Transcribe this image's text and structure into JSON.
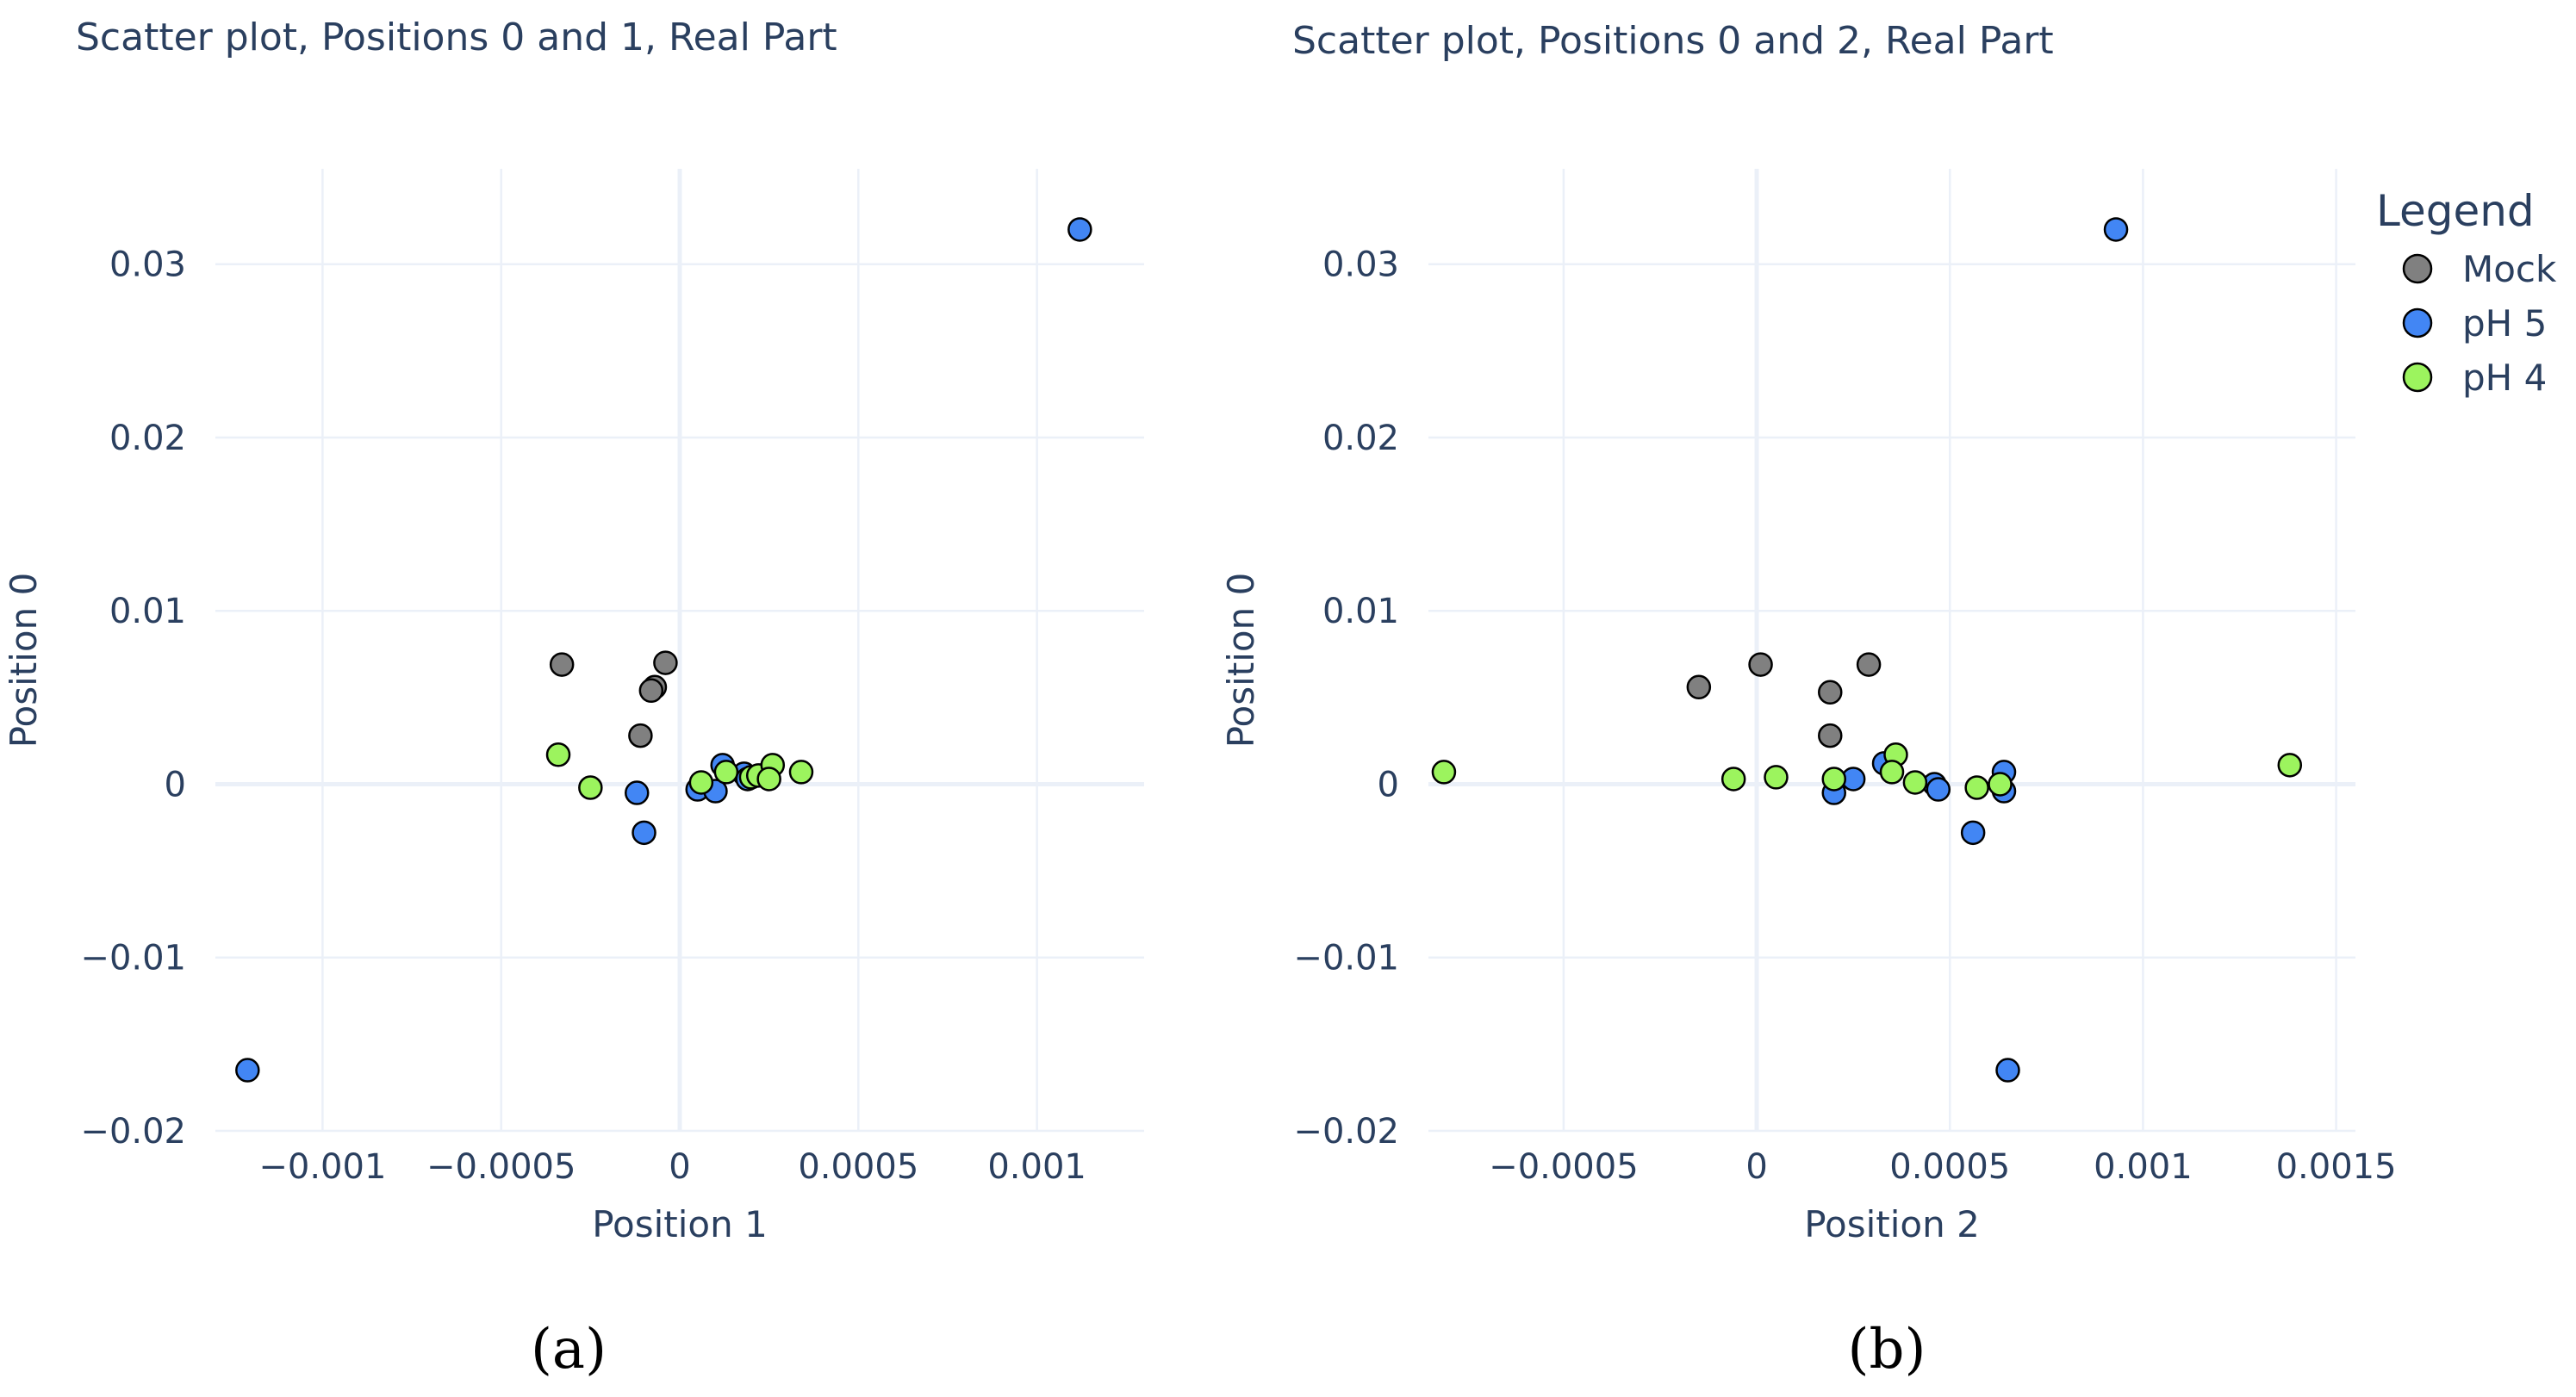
{
  "colors": {
    "Mock": "#808080",
    "pH 5": "#4286f4",
    "pH 4": "#9cf45e"
  },
  "legend": {
    "title": "Legend",
    "items": [
      "Mock",
      "pH 5",
      "pH 4"
    ]
  },
  "chart_data": [
    {
      "type": "scatter",
      "title": "Scatter plot, Positions 0 and 1, Real Part",
      "panel_label": "(a)",
      "xlabel": "Position 1",
      "ylabel": "Position 0",
      "xlim": [
        -0.0013,
        0.0013
      ],
      "ylim": [
        -0.02,
        0.0355
      ],
      "xticks": [
        -0.001,
        -0.0005,
        0,
        0.0005,
        0.001
      ],
      "xtick_labels": [
        "−0.001",
        "−0.0005",
        "0",
        "0.0005",
        "0.001"
      ],
      "yticks": [
        -0.02,
        -0.01,
        0,
        0.01,
        0.02,
        0.03
      ],
      "ytick_labels": [
        "−0.02",
        "−0.01",
        "0",
        "0.01",
        "0.02",
        "0.03"
      ],
      "series": [
        {
          "name": "Mock",
          "points": [
            [
              -0.00033,
              0.0069
            ],
            [
              -4e-05,
              0.007
            ],
            [
              -7e-05,
              0.0056
            ],
            [
              -8e-05,
              0.0054
            ],
            [
              -0.00011,
              0.0028
            ]
          ]
        },
        {
          "name": "pH 5",
          "points": [
            [
              0.00112,
              0.032
            ],
            [
              -0.00121,
              -0.0165
            ],
            [
              -0.00012,
              -0.0005
            ],
            [
              -0.0001,
              -0.0028
            ],
            [
              0.00012,
              0.0011
            ],
            [
              5e-05,
              -0.0003
            ],
            [
              0.0001,
              -0.0004
            ],
            [
              0.00018,
              0.0006
            ],
            [
              0.00019,
              0.0003
            ],
            [
              0.00023,
              0.0005
            ]
          ]
        },
        {
          "name": "pH 4",
          "points": [
            [
              -0.00034,
              0.0017
            ],
            [
              -0.00025,
              -0.0002
            ],
            [
              6e-05,
              0.0001
            ],
            [
              0.00013,
              0.0007
            ],
            [
              0.0002,
              0.0004
            ],
            [
              0.00022,
              0.0005
            ],
            [
              0.00026,
              0.0011
            ],
            [
              0.00034,
              0.0007
            ],
            [
              0.00025,
              0.0003
            ]
          ]
        }
      ]
    },
    {
      "type": "scatter",
      "title": "Scatter plot, Positions 0 and 2, Real Part",
      "panel_label": "(b)",
      "xlabel": "Position 2",
      "ylabel": "Position 0",
      "xlim": [
        -0.00085,
        0.00155
      ],
      "ylim": [
        -0.02,
        0.0355
      ],
      "xticks": [
        -0.0005,
        0,
        0.0005,
        0.001,
        0.0015
      ],
      "xtick_labels": [
        "−0.0005",
        "0",
        "0.0005",
        "0.001",
        "0.0015"
      ],
      "yticks": [
        -0.02,
        -0.01,
        0,
        0.01,
        0.02,
        0.03
      ],
      "ytick_labels": [
        "−0.02",
        "−0.01",
        "0",
        "0.01",
        "0.02",
        "0.03"
      ],
      "series": [
        {
          "name": "Mock",
          "points": [
            [
              -0.00015,
              0.0056
            ],
            [
              1e-05,
              0.0069
            ],
            [
              0.00019,
              0.0053
            ],
            [
              0.00029,
              0.0069
            ],
            [
              0.00019,
              0.0028
            ]
          ]
        },
        {
          "name": "pH 5",
          "points": [
            [
              0.00093,
              0.032
            ],
            [
              0.00065,
              -0.0165
            ],
            [
              0.00056,
              -0.0028
            ],
            [
              0.00033,
              0.0012
            ],
            [
              0.00025,
              0.0003
            ],
            [
              0.0002,
              -0.0005
            ],
            [
              0.00046,
              0.0
            ],
            [
              0.00047,
              -0.0003
            ],
            [
              0.00064,
              0.0007
            ],
            [
              0.00064,
              -0.0004
            ]
          ]
        },
        {
          "name": "pH 4",
          "points": [
            [
              -0.00081,
              0.0007
            ],
            [
              -6e-05,
              0.0003
            ],
            [
              5e-05,
              0.0004
            ],
            [
              0.0002,
              0.0003
            ],
            [
              0.00036,
              0.0017
            ],
            [
              0.00035,
              0.0007
            ],
            [
              0.00041,
              0.0001
            ],
            [
              0.00057,
              -0.0002
            ],
            [
              0.00063,
              0.0
            ],
            [
              0.00138,
              0.0011
            ]
          ]
        }
      ]
    }
  ]
}
